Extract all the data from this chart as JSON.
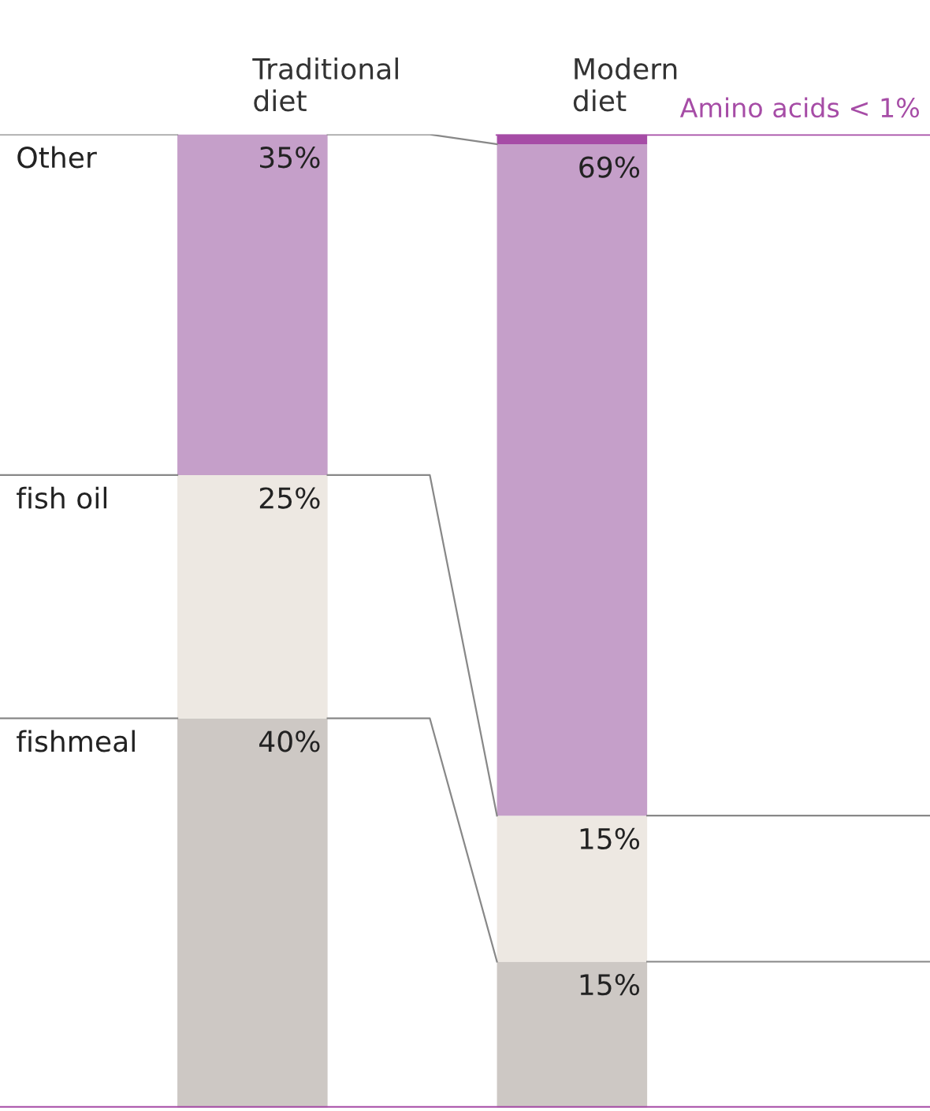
{
  "chart_data": {
    "type": "bar",
    "stacked": true,
    "categories": [
      "Traditional diet",
      "Modern diet"
    ],
    "ylim": [
      0,
      100
    ],
    "tick_labels": "x",
    "legend": false,
    "grid": false,
    "series": [
      {
        "name": "fishmeal",
        "color": "#cdc8c4",
        "values": [
          40,
          15
        ],
        "value_labels": [
          "40%",
          "15%"
        ]
      },
      {
        "name": "fish oil",
        "color": "#ede8e2",
        "values": [
          25,
          15
        ],
        "value_labels": [
          "25%",
          "15%"
        ]
      },
      {
        "name": "Other",
        "color": "#c59fc9",
        "values": [
          35,
          69
        ],
        "value_labels": [
          "35%",
          "69%"
        ]
      },
      {
        "name": "Amino acids < 1%",
        "color": "#a64ca6",
        "values": [
          null,
          1
        ],
        "value_labels": [
          null,
          null
        ]
      }
    ]
  }
}
